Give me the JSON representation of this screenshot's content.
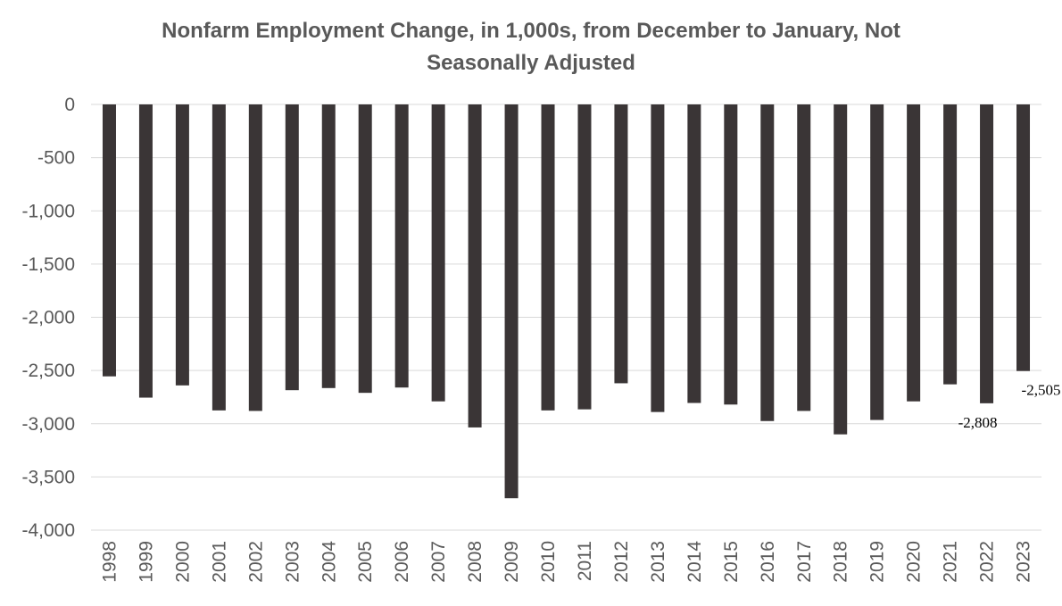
{
  "chart_data": {
    "type": "bar",
    "title_lines": [
      "Nonfarm Employment Change, in 1,000s, from December to January, Not",
      "Seasonally Adjusted"
    ],
    "categories": [
      "1998",
      "1999",
      "2000",
      "2001",
      "2002",
      "2003",
      "2004",
      "2005",
      "2006",
      "2007",
      "2008",
      "2009",
      "2010",
      "2011",
      "2012",
      "2013",
      "2014",
      "2015",
      "2016",
      "2017",
      "2018",
      "2019",
      "2020",
      "2021",
      "2022",
      "2023"
    ],
    "values": [
      -2555,
      -2755,
      -2640,
      -2875,
      -2880,
      -2685,
      -2665,
      -2710,
      -2660,
      -2790,
      -3035,
      -3700,
      -2875,
      -2865,
      -2620,
      -2890,
      -2805,
      -2820,
      -2975,
      -2880,
      -3100,
      -2965,
      -2790,
      -2630,
      -2808,
      -2505
    ],
    "y_ticks": [
      "0",
      "-500",
      "-1,000",
      "-1,500",
      "-2,000",
      "-2,500",
      "-3,000",
      "-3,500",
      "-4,000"
    ],
    "ylim": [
      -4000,
      0
    ],
    "grid": true,
    "legend": "none",
    "data_labels": [
      {
        "category": "2022",
        "text": "-2,808"
      },
      {
        "category": "2023",
        "text": "-2,505"
      }
    ],
    "colors": {
      "bar": "#3a3536",
      "grid": "#d9d9d9",
      "text": "#595959"
    }
  }
}
